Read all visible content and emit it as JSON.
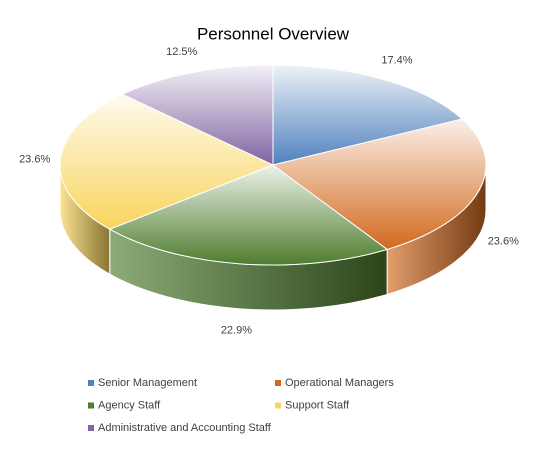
{
  "chart_data": {
    "type": "pie",
    "title": "Personnel Overview",
    "categories": [
      "Senior Management",
      "Operational Managers",
      "Agency Staff",
      "Support Staff",
      "Administrative and Accounting Staff"
    ],
    "values": [
      17.4,
      23.6,
      22.9,
      23.6,
      12.5
    ],
    "value_labels": [
      "17.4%",
      "23.6%",
      "22.9%",
      "23.6%",
      "12.5%"
    ],
    "colors": [
      "#4f81bd",
      "#d2691e",
      "#4e7d2e",
      "#f9d45c",
      "#8064a2"
    ],
    "legend": "bottom"
  }
}
